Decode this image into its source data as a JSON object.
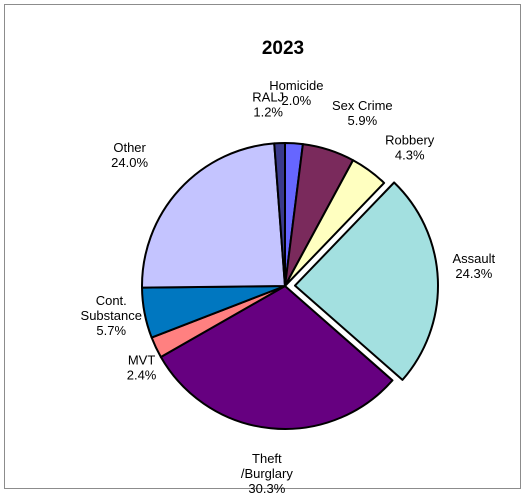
{
  "chart_data": {
    "type": "pie",
    "title": "2023",
    "slices": [
      {
        "label": "Homicide",
        "value": 2.0,
        "value_text": "2.0%",
        "color": "#6666ff",
        "exploded": false
      },
      {
        "label": "Sex Crime",
        "value": 5.9,
        "value_text": "5.9%",
        "color": "#7a2a5c",
        "exploded": false
      },
      {
        "label": "Robbery",
        "value": 4.3,
        "value_text": "4.3%",
        "color": "#ffffc0",
        "exploded": false
      },
      {
        "label": "Assault",
        "value": 24.3,
        "value_text": "24.3%",
        "color": "#a3e0e0",
        "exploded": true
      },
      {
        "label": "Theft\n/Burglary",
        "value": 30.3,
        "value_text": "30.3%",
        "color": "#660080",
        "exploded": false
      },
      {
        "label": "MVT",
        "value": 2.4,
        "value_text": "2.4%",
        "color": "#ff8080",
        "exploded": false
      },
      {
        "label": "Cont.\nSubstance",
        "value": 5.7,
        "value_text": "5.7%",
        "color": "#0077c0",
        "exploded": false
      },
      {
        "label": "Other",
        "value": 24.0,
        "value_text": "24.0%",
        "color": "#c4c4ff",
        "exploded": false
      },
      {
        "label": "RALJ",
        "value": 1.2,
        "value_text": "1.2%",
        "color": "#3a3a8c",
        "exploded": false
      }
    ]
  }
}
